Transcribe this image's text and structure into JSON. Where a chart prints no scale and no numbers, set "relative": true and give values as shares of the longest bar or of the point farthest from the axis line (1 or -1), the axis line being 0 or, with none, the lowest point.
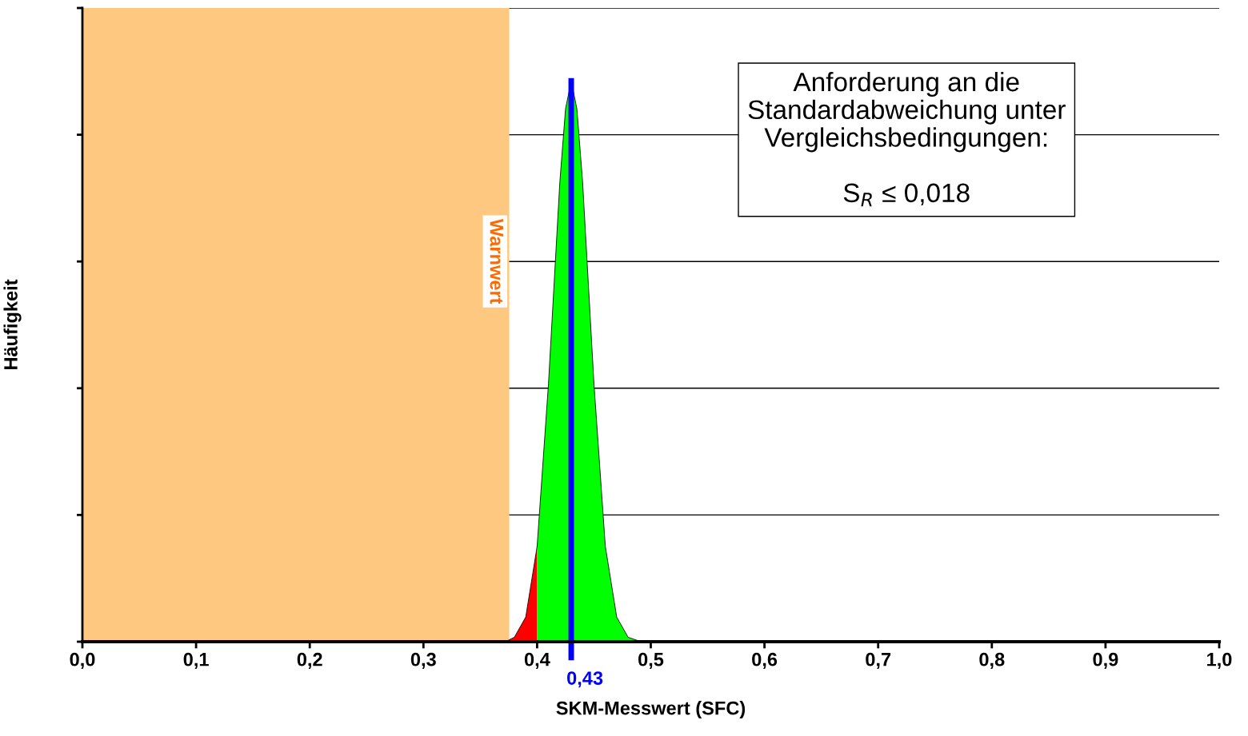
{
  "chart_data": {
    "type": "area",
    "relative": true,
    "xlabel": "SKM-Messwert (SFC)",
    "ylabel": "Häufigkeit",
    "xlim": [
      0,
      1
    ],
    "xticks": [
      {
        "value": 0,
        "label": "0,0"
      },
      {
        "value": 0.1,
        "label": "0,1"
      },
      {
        "value": 0.2,
        "label": "0,2"
      },
      {
        "value": 0.3,
        "label": "0,3"
      },
      {
        "value": 0.4,
        "label": "0,4"
      },
      {
        "value": 0.5,
        "label": "0,5"
      },
      {
        "value": 0.6,
        "label": "0,6"
      },
      {
        "value": 0.7,
        "label": "0,7"
      },
      {
        "value": 0.8,
        "label": "0,8"
      },
      {
        "value": 0.9,
        "label": "0,9"
      },
      {
        "value": 1,
        "label": "1,0"
      }
    ],
    "tick_labels": "x",
    "grid": "y",
    "series": [
      {
        "color": "#ff0000",
        "x": [
          0.375,
          0.38,
          0.39,
          0.4
        ],
        "values": [
          0.003,
          0.008,
          0.044,
          0.17
        ]
      },
      {
        "color": "#00ff00",
        "x": [
          0.4,
          0.41,
          0.415,
          0.42,
          0.425,
          0.43,
          0.435,
          0.44,
          0.445,
          0.45,
          0.46,
          0.47,
          0.48,
          0.49
        ],
        "values": [
          0.17,
          0.46,
          0.64,
          0.82,
          0.95,
          1,
          0.95,
          0.82,
          0.64,
          0.46,
          0.17,
          0.044,
          0.008,
          0.001
        ]
      }
    ],
    "bands": [
      {
        "axis": "x",
        "from": 0,
        "to": 0.375,
        "label": "Warnwert",
        "color": "#ffc880"
      }
    ],
    "ref_lines": [
      {
        "axis": "x",
        "value": 0.43,
        "label": "0,43",
        "color": "#0000ff"
      }
    ],
    "annotations": [
      "Anforderung an die\nStandardabweichung unter\nVergleichsbedingungen:\n\nS$_{R}$ ≤ 0,018"
    ]
  }
}
